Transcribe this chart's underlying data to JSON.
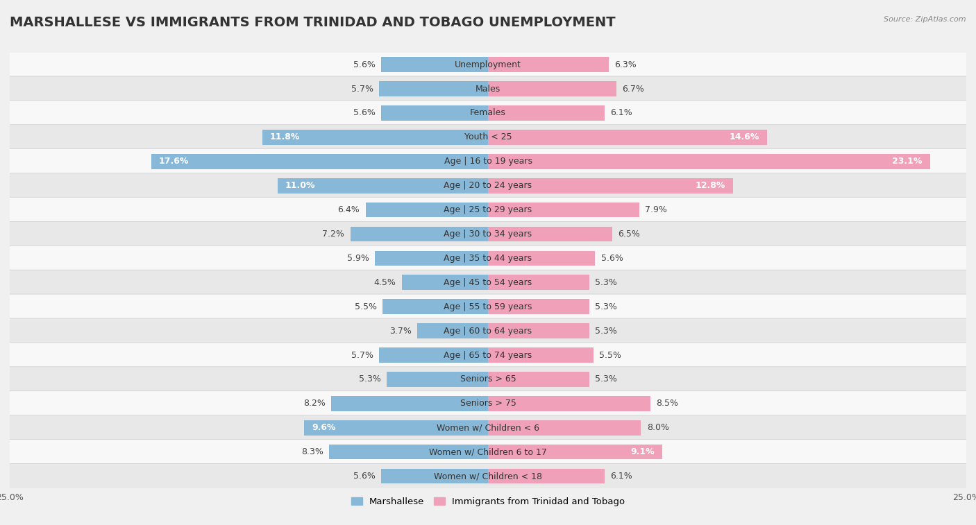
{
  "title": "MARSHALLESE VS IMMIGRANTS FROM TRINIDAD AND TOBAGO UNEMPLOYMENT",
  "source": "Source: ZipAtlas.com",
  "categories": [
    "Unemployment",
    "Males",
    "Females",
    "Youth < 25",
    "Age | 16 to 19 years",
    "Age | 20 to 24 years",
    "Age | 25 to 29 years",
    "Age | 30 to 34 years",
    "Age | 35 to 44 years",
    "Age | 45 to 54 years",
    "Age | 55 to 59 years",
    "Age | 60 to 64 years",
    "Age | 65 to 74 years",
    "Seniors > 65",
    "Seniors > 75",
    "Women w/ Children < 6",
    "Women w/ Children 6 to 17",
    "Women w/ Children < 18"
  ],
  "marshallese": [
    5.6,
    5.7,
    5.6,
    11.8,
    17.6,
    11.0,
    6.4,
    7.2,
    5.9,
    4.5,
    5.5,
    3.7,
    5.7,
    5.3,
    8.2,
    9.6,
    8.3,
    5.6
  ],
  "trinidad": [
    6.3,
    6.7,
    6.1,
    14.6,
    23.1,
    12.8,
    7.9,
    6.5,
    5.6,
    5.3,
    5.3,
    5.3,
    5.5,
    5.3,
    8.5,
    8.0,
    9.1,
    6.1
  ],
  "marshallese_color": "#88b8d8",
  "trinidad_color": "#f0a0b8",
  "xlim": 25.0,
  "bg_color": "#f0f0f0",
  "row_color_even": "#f8f8f8",
  "row_color_odd": "#e8e8e8",
  "title_fontsize": 14,
  "label_fontsize": 9,
  "tick_fontsize": 9,
  "legend_labels": [
    "Marshallese",
    "Immigrants from Trinidad and Tobago"
  ]
}
